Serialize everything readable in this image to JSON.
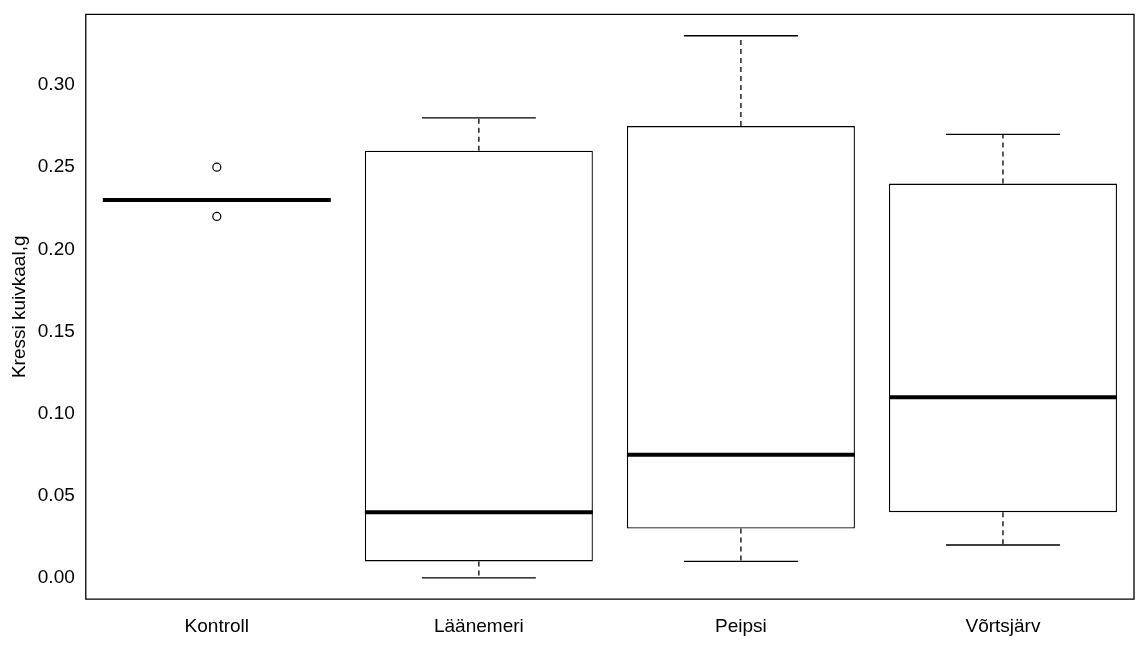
{
  "chart_data": {
    "type": "box",
    "ylabel": "Kressi kuivkaal,g",
    "categories": [
      "Kontroll",
      "Läänemeri",
      "Peipsi",
      "Võrtsjärv"
    ],
    "boxes": [
      {
        "low": 0.23,
        "q1": 0.23,
        "median": 0.23,
        "q3": 0.23,
        "high": 0.23,
        "outliers": [
          0.25,
          0.22
        ]
      },
      {
        "low": 0,
        "q1": 0.01,
        "median": 0.04,
        "q3": 0.26,
        "high": 0.28
      },
      {
        "low": 0.01,
        "q1": 0.03,
        "median": 0.075,
        "q3": 0.275,
        "high": 0.33
      },
      {
        "low": 0.02,
        "q1": 0.04,
        "median": 0.11,
        "q3": 0.24,
        "high": 0.27
      }
    ],
    "ylim": [
      -0.013,
      0.343
    ],
    "yticks": [
      {
        "value": 0,
        "label": "0.00"
      },
      {
        "value": 0.05,
        "label": "0.05"
      },
      {
        "value": 0.1,
        "label": "0.10"
      },
      {
        "value": 0.15,
        "label": "0.15"
      },
      {
        "value": 0.2,
        "label": "0.20"
      },
      {
        "value": 0.25,
        "label": "0.25"
      },
      {
        "value": 0.3,
        "label": "0.30"
      }
    ]
  }
}
